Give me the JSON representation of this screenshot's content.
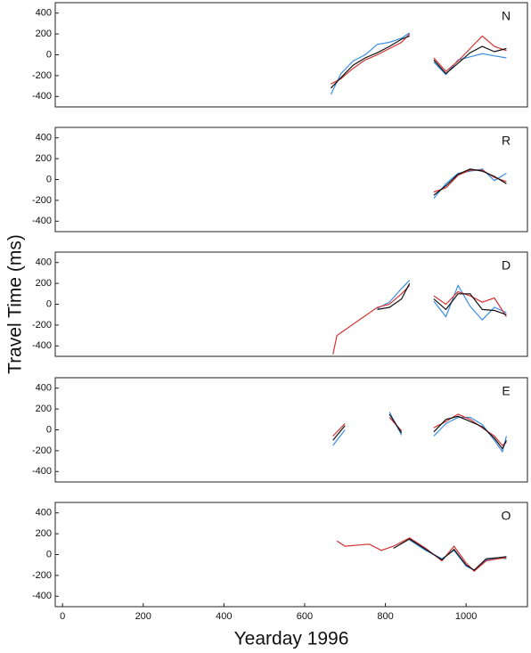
{
  "chart_data": [
    {
      "type": "line",
      "title": "N",
      "xlim": [
        -18,
        1152
      ],
      "ylim": [
        -500,
        500
      ],
      "yticks": [
        -400,
        -200,
        0,
        200,
        400
      ],
      "x": [
        665,
        690,
        720,
        750,
        780,
        810,
        840,
        860,
        890,
        920,
        950,
        980,
        1010,
        1040,
        1070,
        1100
      ],
      "series": [
        {
          "color": "#3a8ee6",
          "values": [
            -380,
            -180,
            -60,
            0,
            100,
            120,
            160,
            210,
            null,
            -70,
            -190,
            -50,
            -20,
            10,
            -10,
            -30
          ]
        },
        {
          "color": "#d33333",
          "values": [
            -280,
            -230,
            -130,
            -50,
            0,
            60,
            120,
            200,
            null,
            -30,
            -160,
            -60,
            60,
            180,
            80,
            40
          ]
        },
        {
          "color": "#111111",
          "values": [
            -320,
            -220,
            -100,
            -30,
            20,
            80,
            150,
            180,
            null,
            -50,
            -180,
            -80,
            20,
            80,
            30,
            60
          ]
        }
      ]
    },
    {
      "type": "line",
      "title": "R",
      "xlim": [
        -18,
        1152
      ],
      "ylim": [
        -500,
        500
      ],
      "yticks": [
        -400,
        -200,
        0,
        200,
        400
      ],
      "x": [
        920,
        950,
        980,
        1010,
        1040,
        1070,
        1100
      ],
      "series": [
        {
          "color": "#3a8ee6",
          "values": [
            -180,
            -40,
            60,
            80,
            100,
            -10,
            60
          ]
        },
        {
          "color": "#d33333",
          "values": [
            -120,
            -80,
            40,
            90,
            90,
            20,
            -20
          ]
        },
        {
          "color": "#111111",
          "values": [
            -150,
            -60,
            50,
            100,
            80,
            30,
            -40
          ]
        }
      ]
    },
    {
      "type": "line",
      "title": "D",
      "ylabel": "Travel Time (ms)",
      "xlim": [
        -18,
        1152
      ],
      "ylim": [
        -500,
        500
      ],
      "yticks": [
        -400,
        -200,
        0,
        200,
        400
      ],
      "x": [
        670,
        680,
        780,
        810,
        840,
        860,
        890,
        920,
        950,
        980,
        1010,
        1040,
        1070,
        1100
      ],
      "series": [
        {
          "color": "#3a8ee6",
          "values": [
            null,
            null,
            -40,
            20,
            150,
            230,
            null,
            30,
            -120,
            180,
            -20,
            -150,
            -30,
            -80
          ]
        },
        {
          "color": "#d33333",
          "values": [
            -480,
            -300,
            -30,
            0,
            100,
            180,
            null,
            80,
            0,
            120,
            80,
            20,
            60,
            -120
          ]
        },
        {
          "color": "#111111",
          "values": [
            null,
            null,
            -50,
            -30,
            50,
            200,
            null,
            50,
            -50,
            100,
            100,
            -50,
            -60,
            -100
          ]
        }
      ]
    },
    {
      "type": "line",
      "title": "E",
      "xlim": [
        -18,
        1152
      ],
      "ylim": [
        -500,
        500
      ],
      "yticks": [
        -400,
        -200,
        0,
        200,
        400
      ],
      "x": [
        670,
        700,
        750,
        810,
        840,
        880,
        920,
        950,
        980,
        1010,
        1040,
        1070,
        1090,
        1100
      ],
      "series": [
        {
          "color": "#3a8ee6",
          "values": [
            -150,
            0,
            null,
            170,
            -50,
            null,
            -60,
            60,
            120,
            120,
            50,
            -100,
            -210,
            -60
          ]
        },
        {
          "color": "#d33333",
          "values": [
            -60,
            60,
            null,
            120,
            -10,
            null,
            20,
            80,
            150,
            100,
            20,
            -60,
            -150,
            -120
          ]
        },
        {
          "color": "#111111",
          "values": [
            -100,
            40,
            null,
            150,
            -30,
            null,
            -20,
            100,
            130,
            80,
            30,
            -80,
            -180,
            -100
          ]
        }
      ]
    },
    {
      "type": "line",
      "title": "O",
      "xlabel": "Yearday 1996",
      "xlim": [
        -18,
        1152
      ],
      "ylim": [
        -500,
        500
      ],
      "yticks": [
        -400,
        -200,
        0,
        200,
        400
      ],
      "xticks": [
        0,
        200,
        400,
        600,
        800,
        1000
      ],
      "x": [
        680,
        700,
        760,
        790,
        820,
        860,
        900,
        940,
        970,
        1000,
        1020,
        1050,
        1080,
        1100
      ],
      "series": [
        {
          "color": "#3a8ee6",
          "values": [
            null,
            null,
            null,
            null,
            null,
            140,
            40,
            -40,
            40,
            -110,
            -150,
            -50,
            -30,
            -40
          ]
        },
        {
          "color": "#d33333",
          "values": [
            130,
            80,
            100,
            40,
            80,
            160,
            60,
            -60,
            80,
            -80,
            -160,
            -60,
            -40,
            -30
          ]
        },
        {
          "color": "#111111",
          "values": [
            null,
            null,
            null,
            null,
            60,
            150,
            50,
            -50,
            50,
            -100,
            -150,
            -40,
            -30,
            -20
          ]
        }
      ]
    }
  ]
}
